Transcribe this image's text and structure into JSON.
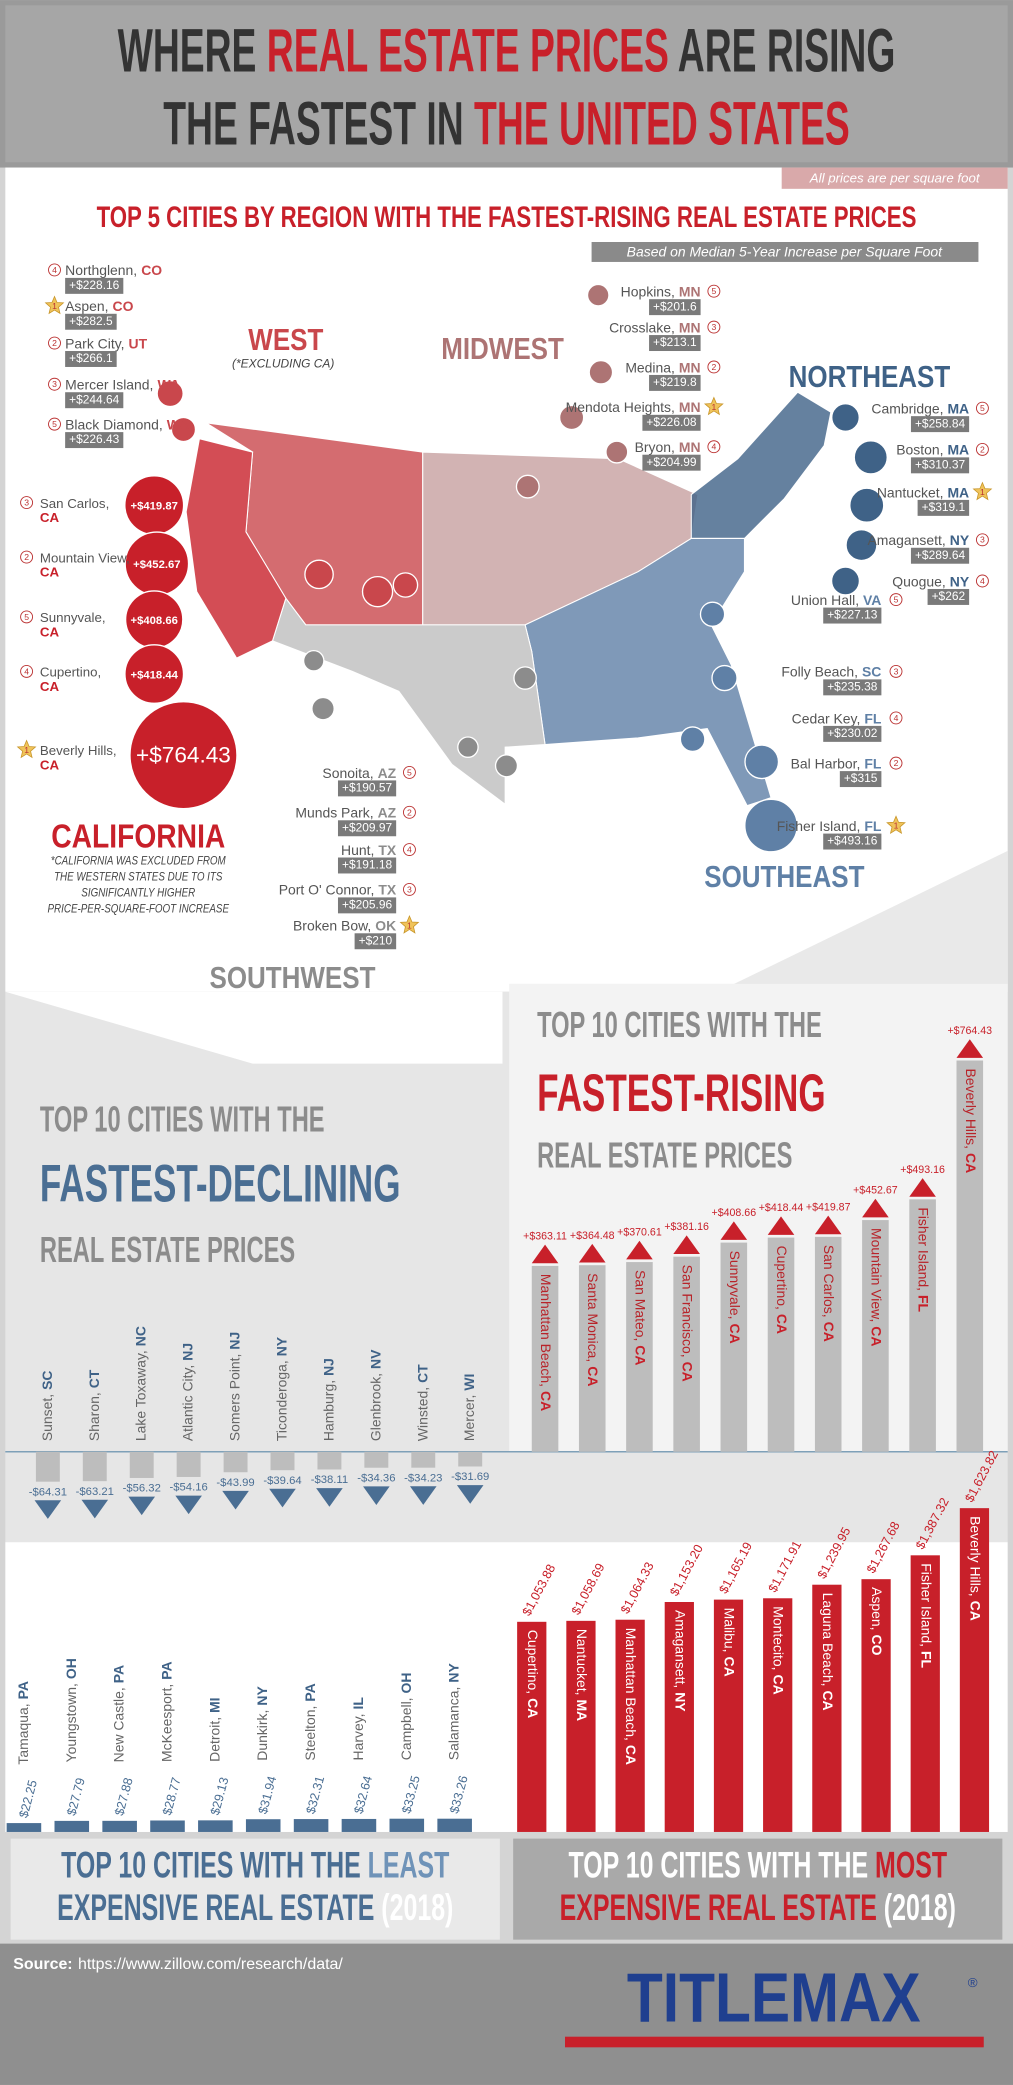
{
  "header": {
    "title_lines": [
      [
        "WHERE ",
        "REAL ESTATE PRICES",
        " ARE RISING"
      ],
      [
        "THE FASTEST IN ",
        "THE UNITED STATES"
      ]
    ]
  },
  "note": "All prices are per square foot",
  "map": {
    "title": "TOP 5 CITIES BY REGION WITH THE FASTEST-RISING REAL ESTATE PRICES",
    "subtitle": "Based on Median 5-Year Increase per Square Foot",
    "regions": [
      {
        "name": "WEST",
        "note": "(*EXCLUDING CA)",
        "color": "#c9474c",
        "cities": [
          {
            "rank": 4,
            "city": "Northglenn,",
            "state": "CO",
            "value": 228.16,
            "value_label": "+$228.16"
          },
          {
            "rank": 1,
            "city": "Aspen,",
            "state": "CO",
            "value": 282.5,
            "value_label": "+$282.5"
          },
          {
            "rank": 2,
            "city": "Park City,",
            "state": "UT",
            "value": 266.1,
            "value_label": "+$266.1"
          },
          {
            "rank": 3,
            "city": "Mercer Island,",
            "state": "WA",
            "value": 244.64,
            "value_label": "+$244.64"
          },
          {
            "rank": 5,
            "city": "Black Diamond,",
            "state": "WA",
            "value": 226.43,
            "value_label": "+$226.43"
          }
        ]
      },
      {
        "name": "MIDWEST",
        "color": "#ad7474",
        "cities": [
          {
            "rank": 5,
            "city": "Hopkins,",
            "state": "MN",
            "value": 201.6,
            "value_label": "+$201.6"
          },
          {
            "rank": 3,
            "city": "Crosslake,",
            "state": "MN",
            "value": 213.1,
            "value_label": "+$213.1"
          },
          {
            "rank": 2,
            "city": "Medina,",
            "state": "MN",
            "value": 219.8,
            "value_label": "+$219.8"
          },
          {
            "rank": 1,
            "city": "Mendota Heights,",
            "state": "MN",
            "value": 226.08,
            "value_label": "+$226.08"
          },
          {
            "rank": 4,
            "city": "Bryon,",
            "state": "MN",
            "value": 204.99,
            "value_label": "+$204.99"
          }
        ]
      },
      {
        "name": "NORTHEAST",
        "color": "#3f6287",
        "cities": [
          {
            "rank": 5,
            "city": "Cambridge,",
            "state": "MA",
            "value": 258.84,
            "value_label": "+$258.84"
          },
          {
            "rank": 2,
            "city": "Boston,",
            "state": "MA",
            "value": 310.37,
            "value_label": "+$310.37"
          },
          {
            "rank": 1,
            "city": "Nantucket,",
            "state": "MA",
            "value": 319.1,
            "value_label": "+$319.1"
          },
          {
            "rank": 3,
            "city": "Amagansett,",
            "state": "NY",
            "value": 289.64,
            "value_label": "+$289.64"
          },
          {
            "rank": 4,
            "city": "Quogue,",
            "state": "NY",
            "value": 262,
            "value_label": "+$262"
          }
        ]
      },
      {
        "name": "SOUTHEAST",
        "color": "#5f80a6",
        "cities": [
          {
            "rank": 5,
            "city": "Union Hall,",
            "state": "VA",
            "value": 227.13,
            "value_label": "+$227.13"
          },
          {
            "rank": 3,
            "city": "Folly Beach,",
            "state": "SC",
            "value": 235.38,
            "value_label": "+$235.38"
          },
          {
            "rank": 4,
            "city": "Cedar Key,",
            "state": "FL",
            "value": 230.02,
            "value_label": "+$230.02"
          },
          {
            "rank": 2,
            "city": "Bal Harbor,",
            "state": "FL",
            "value": 315,
            "value_label": "+$315"
          },
          {
            "rank": 1,
            "city": "Fisher Island,",
            "state": "FL",
            "value": 493.16,
            "value_label": "+$493.16"
          }
        ]
      },
      {
        "name": "SOUTHWEST",
        "color": "#8c8c8c",
        "cities": [
          {
            "rank": 5,
            "city": "Sonoita,",
            "state": "AZ",
            "value": 190.57,
            "value_label": "+$190.57"
          },
          {
            "rank": 2,
            "city": "Munds Park,",
            "state": "AZ",
            "value": 209.97,
            "value_label": "+$209.97"
          },
          {
            "rank": 4,
            "city": "Hunt,",
            "state": "TX",
            "value": 191.18,
            "value_label": "+$191.18"
          },
          {
            "rank": 3,
            "city": "Port O' Connor,",
            "state": "TX",
            "value": 205.96,
            "value_label": "+$205.96"
          },
          {
            "rank": 1,
            "city": "Broken Bow,",
            "state": "OK",
            "value": 210,
            "value_label": "+$210"
          }
        ]
      },
      {
        "name": "CALIFORNIA",
        "note": [
          "*CALIFORNIA WAS EXCLUDED FROM",
          "THE WESTERN STATES DUE TO ITS",
          "SIGNIFICANTLY HIGHER",
          "PRICE-PER-SQUARE-FOOT INCREASE"
        ],
        "color": "#c8202a",
        "cities": [
          {
            "rank": 3,
            "city": "San Carlos,",
            "state": "CA",
            "value": 419.87,
            "value_label": "+$419.87"
          },
          {
            "rank": 2,
            "city": "Mountain View,",
            "state": "CA",
            "value": 452.67,
            "value_label": "+$452.67"
          },
          {
            "rank": 5,
            "city": "Sunnyvale,",
            "state": "CA",
            "value": 408.66,
            "value_label": "+$408.66"
          },
          {
            "rank": 4,
            "city": "Cupertino,",
            "state": "CA",
            "value": 418.44,
            "value_label": "+$418.44"
          },
          {
            "rank": 1,
            "city": "Beverly Hills,",
            "state": "CA",
            "value": 764.43,
            "value_label": "+$764.43"
          }
        ]
      }
    ]
  },
  "chart_data": [
    {
      "type": "bar",
      "title": [
        "TOP 10 CITIES WITH THE",
        "FASTEST-RISING",
        "REAL ESTATE PRICES"
      ],
      "categories": [
        "Manhattan Beach,",
        "Santa Monica,",
        "San Mateo,",
        "San Francisco,",
        "Sunnyvale,",
        "Cupertino,",
        "San Carlos,",
        "Mountain View,",
        "Fisher Island,",
        "Beverly Hills,"
      ],
      "states": [
        "CA",
        "CA",
        "CA",
        "CA",
        "CA",
        "CA",
        "CA",
        "CA",
        "FL",
        "CA"
      ],
      "values": [
        363.11,
        364.48,
        370.61,
        381.16,
        408.66,
        418.44,
        419.87,
        452.67,
        493.16,
        764.43
      ],
      "value_labels": [
        "+$363.11",
        "+$364.48",
        "+$370.61",
        "+$381.16",
        "+$408.66",
        "+$418.44",
        "+$419.87",
        "+$452.67",
        "+$493.16",
        "+$764.43"
      ],
      "color": "#bdbdbd"
    },
    {
      "type": "bar",
      "title": [
        "TOP 10 CITIES WITH THE",
        "FASTEST-DECLINING",
        "REAL ESTATE PRICES"
      ],
      "categories": [
        "Sunset,",
        "Sharon,",
        "Lake Toxaway,",
        "Atlantic City,",
        "Somers Point,",
        "Ticonderoga,",
        "Hamburg,",
        "Glenbrook,",
        "Winsted,",
        "Mercer,"
      ],
      "states": [
        "SC",
        "CT",
        "NC",
        "NJ",
        "NJ",
        "NY",
        "NJ",
        "NV",
        "CT",
        "WI"
      ],
      "values": [
        -64.31,
        -63.21,
        -56.32,
        -54.16,
        -43.99,
        -39.64,
        -38.11,
        -34.36,
        -34.23,
        -31.69
      ],
      "value_labels": [
        "-$64.31",
        "-$63.21",
        "-$56.32",
        "-$54.16",
        "-$43.99",
        "-$39.64",
        "-$38.11",
        "-$34.36",
        "-$34.23",
        "-$31.69"
      ],
      "color": "#bdbdbd"
    },
    {
      "type": "bar",
      "title": [
        [
          "TOP 10 CITIES WITH THE ",
          "LEAST"
        ],
        [
          "EXPENSIVE REAL ESTATE",
          " (2018)"
        ]
      ],
      "categories": [
        "Tamaqua,",
        "Youngstown,",
        "New Castle,",
        "McKeesport,",
        "Detroit,",
        "Dunkirk,",
        "Steelton,",
        "Harvey,",
        "Campbell,",
        "Salamanca,"
      ],
      "states": [
        "PA",
        "OH",
        "PA",
        "PA",
        "MI",
        "NY",
        "PA",
        "IL",
        "OH",
        "NY"
      ],
      "values": [
        22.25,
        27.79,
        27.88,
        28.77,
        29.13,
        31.94,
        32.31,
        32.64,
        33.25,
        33.26
      ],
      "value_labels": [
        "$22.25",
        "$27.79",
        "$27.88",
        "$28.77",
        "$29.13",
        "$31.94",
        "$32.31",
        "$32.64",
        "$33.25",
        "$33.26"
      ],
      "color": "#4a6e93"
    },
    {
      "type": "bar",
      "title": [
        [
          "TOP 10 CITIES WITH THE ",
          "MOST"
        ],
        [
          "EXPENSIVE REAL ESTATE",
          " (2018)"
        ]
      ],
      "categories": [
        "Cupertino,",
        "Nantucket,",
        "Manhattan Beach,",
        "Amagansett,",
        "Malibu,",
        "Montecito,",
        "Laguna Beach,",
        "Aspen,",
        "Fisher Island,",
        "Beverly Hills,"
      ],
      "states": [
        "CA",
        "MA",
        "CA",
        "NY",
        "CA",
        "CA",
        "CA",
        "CO",
        "FL",
        "CA"
      ],
      "values": [
        1053.88,
        1058.69,
        1064.33,
        1153.2,
        1165.19,
        1171.91,
        1239.95,
        1267.68,
        1387.32,
        1623.82
      ],
      "value_labels": [
        "$1,053.88",
        "$1,058.69",
        "$1,064.33",
        "$1,153.20",
        "$1,165.19",
        "$1,171.91",
        "$1,239.95",
        "$1,267.68",
        "$1,387.32",
        "$1,623.82"
      ],
      "color": "#c8202a"
    }
  ],
  "footer": {
    "source_label": "Source:",
    "source_url": "https://www.zillow.com/research/data/",
    "logo": "TITLEMAX",
    "logo_mark": "®"
  }
}
